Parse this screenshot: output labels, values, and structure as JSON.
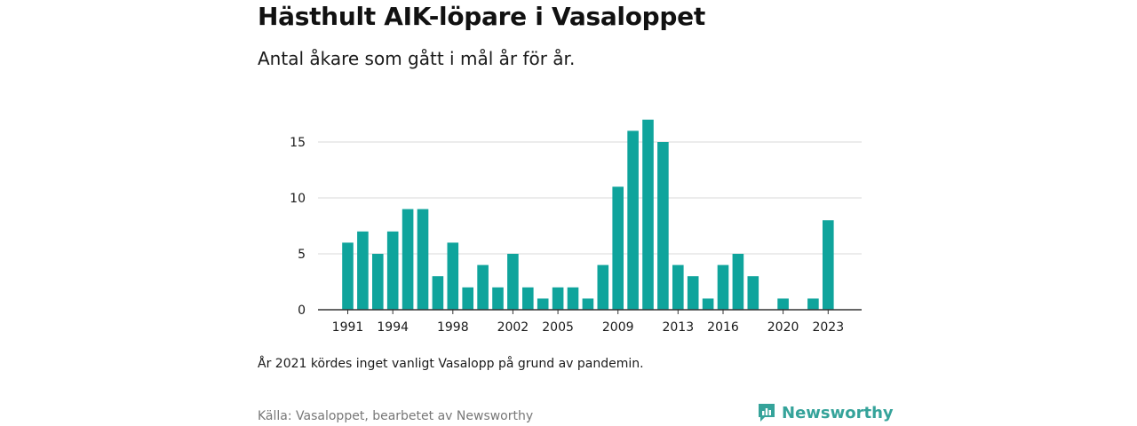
{
  "title": "Hästhult AIK-löpare i Vasaloppet",
  "subtitle": "Antal åkare som gått i mål år för år.",
  "note": "År 2021 kördes inget vanligt Vasalopp på grund av pandemin.",
  "source": "Källa: Vasaloppet, bearbetet av Newsworthy",
  "brand": {
    "name": "Newsworthy",
    "icon": "newsworthy-logo-icon"
  },
  "colors": {
    "bar": "#0fa49c",
    "grid": "#d9d9d9",
    "axis": "#333333",
    "brand": "#35a39a"
  },
  "chart_data": {
    "type": "bar",
    "title": "",
    "xlabel": "",
    "ylabel": "",
    "categories": [
      1991,
      1992,
      1993,
      1994,
      1995,
      1996,
      1997,
      1998,
      1999,
      2000,
      2001,
      2002,
      2003,
      2004,
      2005,
      2006,
      2007,
      2008,
      2009,
      2010,
      2011,
      2012,
      2013,
      2014,
      2015,
      2016,
      2017,
      2018,
      2019,
      2020,
      2021,
      2022,
      2023
    ],
    "values": [
      6,
      7,
      5,
      7,
      9,
      9,
      3,
      6,
      2,
      4,
      2,
      5,
      2,
      1,
      2,
      2,
      1,
      4,
      11,
      16,
      17,
      15,
      4,
      3,
      1,
      4,
      5,
      3,
      null,
      1,
      null,
      1,
      8
    ],
    "x_tick_labels": [
      "1991",
      "1994",
      "1998",
      "2002",
      "2005",
      "2009",
      "2013",
      "2016",
      "2020",
      "2023"
    ],
    "y_ticks": [
      0,
      5,
      10,
      15
    ],
    "ylim": [
      0,
      17
    ],
    "grid": true,
    "legend": "none"
  }
}
